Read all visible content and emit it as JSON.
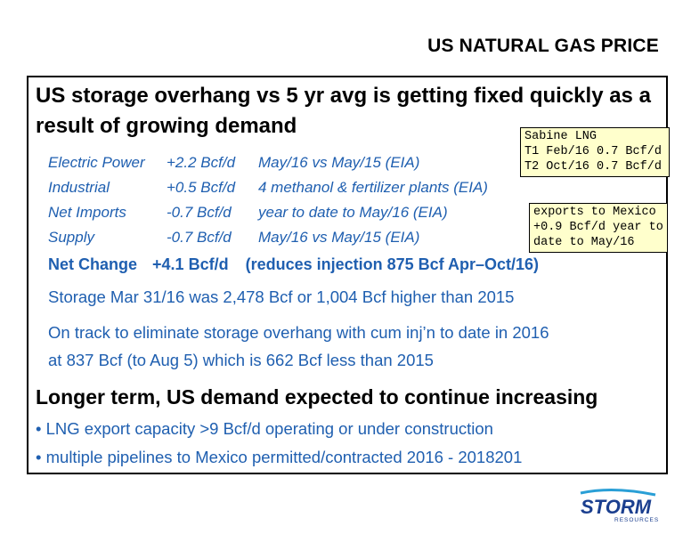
{
  "title": "US NATURAL GAS PRICE",
  "headline": "US storage overhang vs 5 yr avg is getting fixed quickly as a result of growing demand",
  "rows": [
    {
      "label": "Electric Power",
      "value": "+2.2 Bcf/d",
      "note": "May/16 vs May/15 (EIA)"
    },
    {
      "label": "Industrial",
      "value": "+0.5 Bcf/d",
      "note": "4 methanol & fertilizer plants (EIA)"
    },
    {
      "label": "Net Imports",
      "value": "-0.7 Bcf/d",
      "note": "year to date to May/16 (EIA)"
    },
    {
      "label": "Supply",
      "value": "-0.7 Bcf/d",
      "note": "May/16 vs May/15 (EIA)"
    }
  ],
  "net_change": {
    "label": "Net Change",
    "value": "+4.1 Bcf/d",
    "note": "(reduces injection 875 Bcf Apr–Oct/16)"
  },
  "storage_line": "Storage Mar 31/16 was 2,478 Bcf or 1,004 Bcf higher than 2015",
  "track_line_1": "On track to eliminate storage overhang with cum inj’n to date in 2016",
  "track_line_2": "at 837 Bcf (to Aug 5) which is 662 Bcf less than 2015",
  "subheading": "Longer term, US demand expected to continue increasing",
  "bullets": [
    "• LNG export capacity >9 Bcf/d operating or under construction",
    "• multiple pipelines to Mexico permitted/contracted 2016 - 2018201"
  ],
  "note_lng": [
    "Sabine LNG",
    "T1 Feb/16 0.7 Bcf/d",
    "T2 Oct/16 0.7 Bcf/d"
  ],
  "note_mexico": [
    "exports to Mexico",
    "+0.9 Bcf/d year to",
    "date to May/16"
  ],
  "logo": {
    "name": "STORM",
    "sub": "RESOURCES"
  },
  "colors": {
    "blue_text": "#1f5fb0",
    "note_bg": "#ffffcc",
    "logo_blue": "#1b3f8f",
    "logo_teal": "#2a9fd6"
  }
}
